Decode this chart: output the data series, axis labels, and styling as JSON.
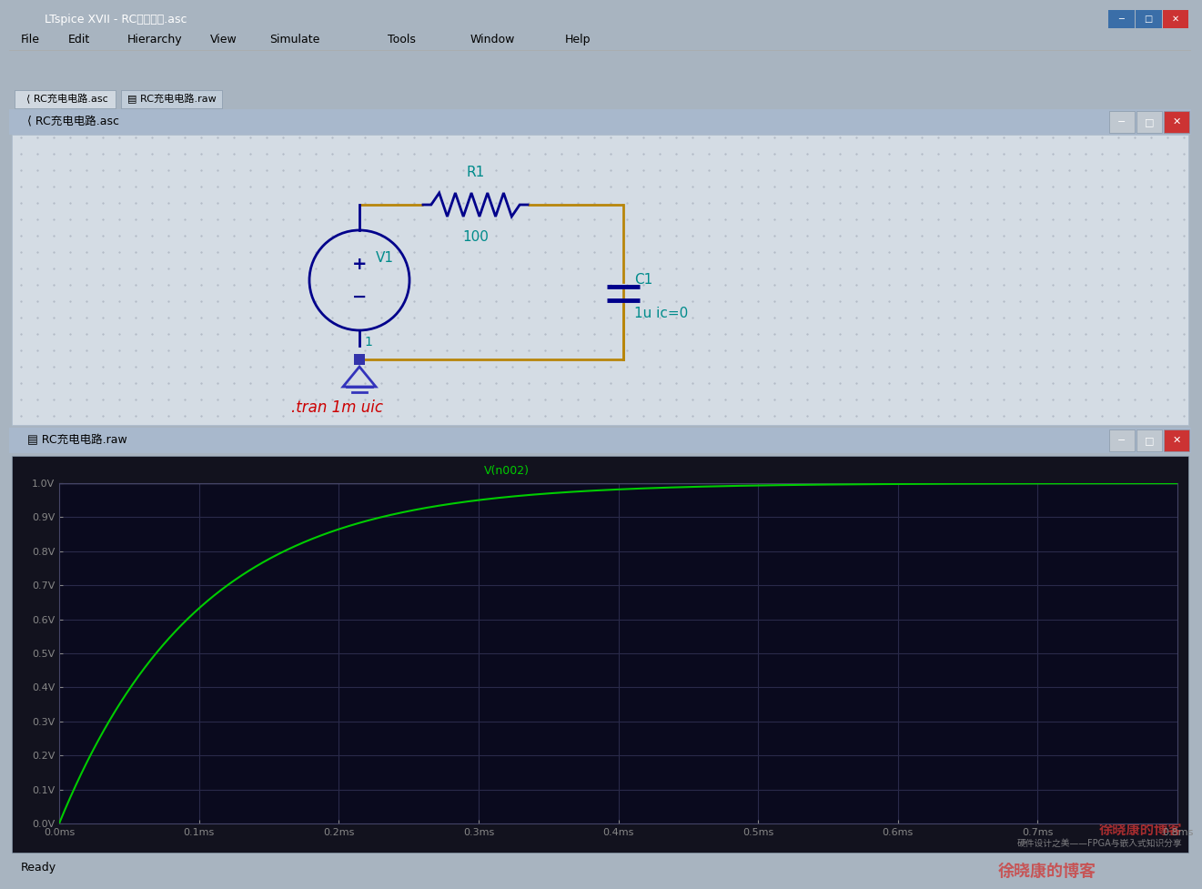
{
  "title_bar": "LTspice XVII - RC充电电路.asc",
  "menu_items": [
    "File",
    "Edit",
    "Hierarchy",
    "View",
    "Simulate",
    "Tools",
    "Window",
    "Help"
  ],
  "tab1": "RC充电电路.asc",
  "tab2": "RC充电电路.raw",
  "schematic_title": "RC充电电路.asc",
  "plot_title": "RC充电电路.raw",
  "bg_color_title": "#c0d0e8",
  "bg_color_schematic": "#d8d8d8",
  "dot_color": "#b0b8c8",
  "wire_color": "#b8860b",
  "component_color": "#00008b",
  "label_color": "#008b8b",
  "ground_color": "#00008b",
  "tran_color": "#cc0000",
  "plot_bg": "#1a1a2e",
  "plot_bg2": "#0d0d1a",
  "grid_color": "#3a3a5c",
  "curve_color": "#00cc00",
  "axis_color": "#888888",
  "plot_label_color": "#00cc00",
  "window_bg": "#c8d4e8",
  "toolbar_bg": "#e8e8e8",
  "main_bg": "#b0bcc8",
  "schematic_inner_bg": "#d0d8e0",
  "plot_inner_bg": "#0a0a1e",
  "ytick_labels": [
    "0.0V",
    "0.1V",
    "0.2V",
    "0.3V",
    "0.4V",
    "0.5V",
    "0.6V",
    "0.7V",
    "0.8V",
    "0.9V",
    "1.0V"
  ],
  "xtick_labels": [
    "0.0ms",
    "0.1ms",
    "0.2ms",
    "0.3ms",
    "0.4ms",
    "0.5ms",
    "0.6ms",
    "0.7ms",
    "0.8ms"
  ],
  "RC_time_constant_ms": 0.1,
  "V_final": 1.0,
  "t_max_ms": 0.8,
  "ready_text": "Ready",
  "watermark_text": "徐晓康的博客",
  "watermark_sub": "硬件设计之美——FPGA与嵌入式知识分享",
  "V_label": "V(n002)",
  "tran_text": ".tran 1m uic",
  "R_label": "R1",
  "R_value": "100",
  "C_label": "C1",
  "C_value": "1u ic=0",
  "V_src_label": "V1",
  "V_src_value": "1"
}
